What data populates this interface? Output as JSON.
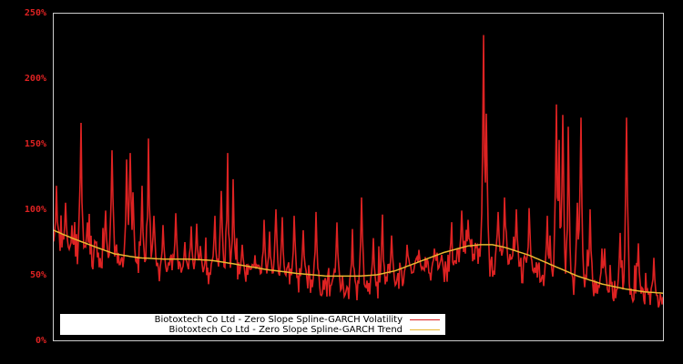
{
  "chart_data": {
    "type": "line",
    "title": "",
    "xlabel": "",
    "ylabel": "",
    "ylim": [
      0,
      250
    ],
    "y_ticks": [
      "0%",
      "50%",
      "100%",
      "150%",
      "200%",
      "250%"
    ],
    "y_tick_values": [
      0,
      50,
      100,
      150,
      200,
      250
    ],
    "grid": false,
    "legend_position": "lower left",
    "x_points": 670,
    "series": [
      {
        "name": "Biotoxtech Co Ltd - Zero Slope Spline-GARCH Volatility",
        "color": "#dd2222",
        "baseline_shape": [
          [
            0,
            72
          ],
          [
            0.07,
            62
          ],
          [
            0.2,
            52
          ],
          [
            0.35,
            48
          ],
          [
            0.5,
            38
          ],
          [
            0.55,
            40
          ],
          [
            0.57,
            50
          ],
          [
            0.65,
            55
          ],
          [
            0.7,
            62
          ],
          [
            0.75,
            56
          ],
          [
            0.85,
            42
          ],
          [
            1.0,
            30
          ]
        ],
        "spikes": [
          [
            0.005,
            118
          ],
          [
            0.02,
            105
          ],
          [
            0.03,
            85
          ],
          [
            0.045,
            166
          ],
          [
            0.055,
            90
          ],
          [
            0.085,
            99
          ],
          [
            0.095,
            145
          ],
          [
            0.12,
            138
          ],
          [
            0.125,
            143
          ],
          [
            0.13,
            113
          ],
          [
            0.145,
            118
          ],
          [
            0.155,
            154
          ],
          [
            0.165,
            95
          ],
          [
            0.18,
            88
          ],
          [
            0.2,
            97
          ],
          [
            0.215,
            75
          ],
          [
            0.225,
            87
          ],
          [
            0.235,
            89
          ],
          [
            0.24,
            72
          ],
          [
            0.265,
            95
          ],
          [
            0.275,
            114
          ],
          [
            0.285,
            143
          ],
          [
            0.295,
            123
          ],
          [
            0.31,
            73
          ],
          [
            0.33,
            65
          ],
          [
            0.345,
            92
          ],
          [
            0.355,
            83
          ],
          [
            0.365,
            100
          ],
          [
            0.375,
            94
          ],
          [
            0.395,
            95
          ],
          [
            0.41,
            84
          ],
          [
            0.43,
            98
          ],
          [
            0.465,
            90
          ],
          [
            0.49,
            85
          ],
          [
            0.505,
            109
          ],
          [
            0.525,
            78
          ],
          [
            0.54,
            96
          ],
          [
            0.55,
            58
          ],
          [
            0.555,
            80
          ],
          [
            0.58,
            73
          ],
          [
            0.59,
            52
          ],
          [
            0.6,
            69
          ],
          [
            0.605,
            56
          ],
          [
            0.625,
            70
          ],
          [
            0.63,
            52
          ],
          [
            0.655,
            60
          ],
          [
            0.67,
            99
          ],
          [
            0.68,
            92
          ],
          [
            0.705,
            233
          ],
          [
            0.71,
            96
          ],
          [
            0.71,
            173
          ],
          [
            0.73,
            98
          ],
          [
            0.74,
            109
          ],
          [
            0.76,
            100
          ],
          [
            0.78,
            101
          ],
          [
            0.81,
            95
          ],
          [
            0.815,
            80
          ],
          [
            0.825,
            180
          ],
          [
            0.83,
            153
          ],
          [
            0.835,
            172
          ],
          [
            0.845,
            163
          ],
          [
            0.86,
            105
          ],
          [
            0.865,
            170
          ],
          [
            0.88,
            100
          ],
          [
            0.9,
            70
          ],
          [
            0.93,
            82
          ],
          [
            0.94,
            170
          ],
          [
            0.96,
            74
          ],
          [
            0.985,
            63
          ],
          [
            0.9,
            67
          ],
          [
            0.905,
            70
          ]
        ],
        "peak_value_approx": 233
      },
      {
        "name": "Biotoxtech Co Ltd - Zero Slope Spline-GARCH Trend",
        "color": "#e8b830",
        "points": [
          [
            0.0,
            84
          ],
          [
            0.03,
            78
          ],
          [
            0.07,
            71
          ],
          [
            0.1,
            66
          ],
          [
            0.14,
            63
          ],
          [
            0.18,
            62
          ],
          [
            0.22,
            62
          ],
          [
            0.26,
            61
          ],
          [
            0.3,
            58
          ],
          [
            0.35,
            54
          ],
          [
            0.4,
            51
          ],
          [
            0.45,
            49
          ],
          [
            0.5,
            49
          ],
          [
            0.53,
            50
          ],
          [
            0.56,
            53
          ],
          [
            0.6,
            60
          ],
          [
            0.64,
            67
          ],
          [
            0.68,
            72
          ],
          [
            0.7,
            73
          ],
          [
            0.72,
            73
          ],
          [
            0.74,
            71
          ],
          [
            0.78,
            65
          ],
          [
            0.82,
            57
          ],
          [
            0.86,
            49
          ],
          [
            0.9,
            43
          ],
          [
            0.94,
            39
          ],
          [
            0.97,
            37
          ],
          [
            1.0,
            36
          ]
        ]
      }
    ]
  },
  "legend": {
    "items": [
      {
        "label": "Biotoxtech Co Ltd - Zero Slope Spline-GARCH Volatility",
        "color": "#dd2222"
      },
      {
        "label": "Biotoxtech Co Ltd - Zero Slope Spline-GARCH Trend",
        "color": "#e8b830"
      }
    ]
  },
  "colors": {
    "background": "#000000",
    "axis": "#cccccc",
    "tick_label": "#dd2222"
  }
}
